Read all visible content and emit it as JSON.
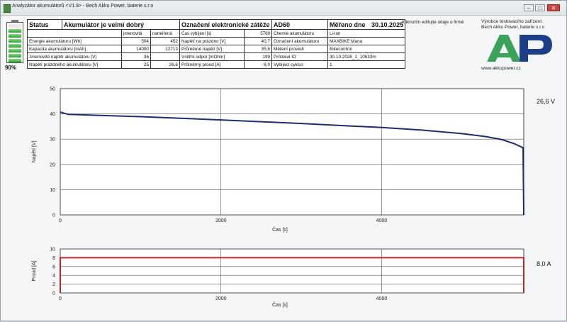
{
  "window": {
    "title": "Analyzátor akumulátorů <V1.9>   -   Bech Akku Power, baterie s.r.o"
  },
  "battery": {
    "level_percent": 90,
    "label": "90%"
  },
  "table": {
    "status_label": "Status",
    "status_value": "Akumulátor je velmi dobrý",
    "load_label": "Označení elektronické zátěže",
    "load_value": "AD60",
    "date_label": "Měřeno dne",
    "date_value": "30.10.2025",
    "col_nominal": "jmenovitá",
    "col_measured": "naměřená",
    "rows": [
      {
        "label": "Energie akumulátoru [Wh]",
        "nominal": "504",
        "measured": "452",
        "key": "Čas vybíjení [s]",
        "val": "5769",
        "key2": "Chemie akumulátoru",
        "val2": "Li-Ion"
      },
      {
        "label": "Kapacita akumulátoru [mAh]",
        "nominal": "14000",
        "measured": "12713",
        "key": "Napětí na prázdno [V]",
        "val": "40,7",
        "key2": "Označení akumulátoru",
        "val2": "MAXBIKE Mana"
      },
      {
        "label": "Jmenovité napětí akumulátoru [V]",
        "nominal": "36",
        "measured": "",
        "key": "Průměrné napětí [V]",
        "val": "35,6",
        "key2": "Měření provedl",
        "val2": "Bikecontrol"
      },
      {
        "label": "Napětí prázdného akumulátoru [V]",
        "nominal": "25",
        "measured": "26,6",
        "key": "Vnitřní odpor [mOhm]",
        "val": "199",
        "key2": "Protokol ID",
        "val2": "30.10.2025_1_10h33m"
      },
      {
        "label": "",
        "nominal": "",
        "measured": "",
        "key": "Průměrný proud [A]",
        "val": "8,0",
        "key2": "Vybíjecí cyklus",
        "val2": "1"
      }
    ]
  },
  "note": "Kliknutím editujte údaje o firmě",
  "maker": {
    "line1": "Výrobce testovacího zařízení:",
    "line2": "Bech Akku Power, baterie s.r.o",
    "web": "www.akkupower.cz",
    "logo_text": "AP"
  },
  "colors": {
    "voltage_line": "#1f2d6e",
    "current_line": "#c0262c",
    "logo_green": "#3aa35a",
    "logo_blue": "#1c3f8c"
  },
  "chart_data": [
    {
      "type": "line",
      "ylabel": "Napětí [V]",
      "xlabel": "Čas [s]",
      "xlim": [
        0,
        5769
      ],
      "ylim": [
        0,
        50
      ],
      "x_ticks": [
        0,
        2000,
        4000
      ],
      "y_ticks": [
        0,
        10,
        20,
        30,
        40,
        50
      ],
      "series": [
        {
          "x": [
            0,
            100,
            500,
            1000,
            1500,
            2000,
            2500,
            3000,
            3500,
            4000,
            4500,
            5000,
            5300,
            5500,
            5650,
            5760,
            5769
          ],
          "y": [
            40.7,
            39.8,
            39.4,
            38.9,
            38.3,
            37.6,
            36.9,
            36.2,
            35.4,
            34.6,
            33.6,
            32.2,
            31.0,
            29.8,
            28.2,
            26.6,
            0
          ]
        }
      ],
      "end_value_label": "26,6 V"
    },
    {
      "type": "line",
      "ylabel": "Proud [A]",
      "xlabel": "Čas [s]",
      "xlim": [
        0,
        5769
      ],
      "ylim": [
        0,
        10
      ],
      "x_ticks": [
        0,
        2000,
        4000
      ],
      "y_ticks": [
        0,
        2,
        4,
        6,
        8,
        10
      ],
      "series": [
        {
          "x": [
            0,
            0,
            5769,
            5769
          ],
          "y": [
            0,
            8.0,
            8.0,
            0
          ]
        }
      ],
      "end_value_label": "8,0 A"
    }
  ]
}
